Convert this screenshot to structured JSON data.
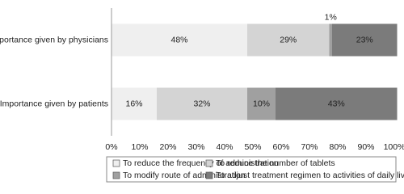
{
  "chart_data": {
    "type": "stacked-barh",
    "categories": [
      "Importance given by physicians",
      "Importance given by patients"
    ],
    "series": [
      {
        "name": "To reduce the frequency of administration",
        "color": "#efefef",
        "values": [
          48,
          16
        ],
        "value_labels": [
          "48%",
          "16%"
        ]
      },
      {
        "name": "To reduce the number of tablets",
        "color": "#d4d4d4",
        "values": [
          29,
          32
        ],
        "value_labels": [
          "29%",
          "32%"
        ]
      },
      {
        "name": "To modify route of administration",
        "color": "#a0a0a0",
        "values": [
          1,
          10
        ],
        "value_labels": [
          "1%",
          "10%"
        ]
      },
      {
        "name": "To adjust treatment regimen to activities of daily living",
        "color": "#7b7b7b",
        "values": [
          23,
          43
        ],
        "value_labels": [
          "23%",
          "43%"
        ]
      }
    ],
    "xlim": [
      0,
      100
    ],
    "xticks": [
      {
        "value": 0,
        "label": "0%"
      },
      {
        "value": 10,
        "label": "10%"
      },
      {
        "value": 20,
        "label": "20%"
      },
      {
        "value": 30,
        "label": "30%"
      },
      {
        "value": 40,
        "label": "40%"
      },
      {
        "value": 50,
        "label": "50%"
      },
      {
        "value": 60,
        "label": "60%"
      },
      {
        "value": 70,
        "label": "70%"
      },
      {
        "value": 80,
        "label": "80%"
      },
      {
        "value": 90,
        "label": "90%"
      },
      {
        "value": 100,
        "label": "100%"
      }
    ],
    "grid": false,
    "legend": "bottom"
  }
}
